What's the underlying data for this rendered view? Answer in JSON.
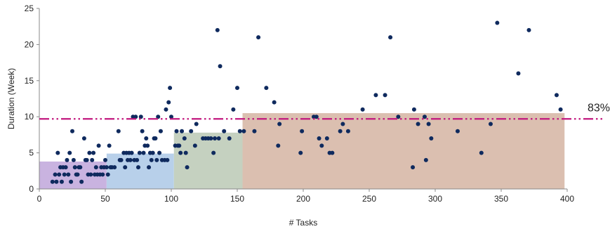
{
  "chart_data": {
    "type": "scatter",
    "title": "",
    "xlabel": "# Tasks",
    "ylabel": "Duration (Week)",
    "xlim": [
      0,
      400
    ],
    "ylim": [
      0,
      25
    ],
    "x_ticks": [
      0,
      50,
      100,
      150,
      200,
      250,
      300,
      350,
      400
    ],
    "y_ticks": [
      0,
      5,
      10,
      15,
      20,
      25
    ],
    "grid": false,
    "point_color": "#0f2a5e",
    "reference_line": {
      "y": 9.7,
      "label": "83%",
      "color": "#c2187e",
      "style": "dash-dot-dot"
    },
    "regions": [
      {
        "x0": 0,
        "x1": 51,
        "y": 3.8,
        "color": "#c9b3e0"
      },
      {
        "x0": 51,
        "x1": 102,
        "y": 4.9,
        "color": "#b8d0ea"
      },
      {
        "x0": 102,
        "x1": 154,
        "y": 7.8,
        "color": "#c5d1c0"
      },
      {
        "x0": 154,
        "x1": 398,
        "y": 10.5,
        "color": "#dbbfb0"
      }
    ],
    "points": [
      [
        10,
        1
      ],
      [
        12,
        2
      ],
      [
        13,
        1
      ],
      [
        14,
        5
      ],
      [
        15,
        2
      ],
      [
        16,
        3
      ],
      [
        17,
        1
      ],
      [
        18,
        3
      ],
      [
        19,
        2
      ],
      [
        20,
        3
      ],
      [
        21,
        4
      ],
      [
        22,
        2
      ],
      [
        23,
        5
      ],
      [
        24,
        1
      ],
      [
        25,
        8
      ],
      [
        26,
        4
      ],
      [
        27,
        3
      ],
      [
        28,
        2
      ],
      [
        29,
        2
      ],
      [
        30,
        3
      ],
      [
        31,
        3
      ],
      [
        32,
        1
      ],
      [
        34,
        7
      ],
      [
        35,
        4
      ],
      [
        36,
        4
      ],
      [
        37,
        2
      ],
      [
        38,
        5
      ],
      [
        39,
        2
      ],
      [
        40,
        4
      ],
      [
        41,
        5
      ],
      [
        42,
        2
      ],
      [
        43,
        3
      ],
      [
        44,
        2
      ],
      [
        45,
        6
      ],
      [
        46,
        2
      ],
      [
        47,
        3
      ],
      [
        48,
        2
      ],
      [
        49,
        3
      ],
      [
        50,
        4
      ],
      [
        51,
        3
      ],
      [
        52,
        2
      ],
      [
        53,
        6
      ],
      [
        54,
        3
      ],
      [
        55,
        3
      ],
      [
        57,
        3
      ],
      [
        60,
        8
      ],
      [
        61,
        4
      ],
      [
        62,
        4
      ],
      [
        64,
        5
      ],
      [
        65,
        3
      ],
      [
        66,
        5
      ],
      [
        67,
        4
      ],
      [
        68,
        5
      ],
      [
        69,
        4
      ],
      [
        70,
        5
      ],
      [
        71,
        10
      ],
      [
        72,
        4
      ],
      [
        73,
        10
      ],
      [
        74,
        4
      ],
      [
        75,
        3
      ],
      [
        76,
        5
      ],
      [
        77,
        10
      ],
      [
        78,
        8
      ],
      [
        79,
        5
      ],
      [
        80,
        6
      ],
      [
        81,
        7
      ],
      [
        82,
        6
      ],
      [
        83,
        3
      ],
      [
        84,
        5
      ],
      [
        85,
        4
      ],
      [
        86,
        5
      ],
      [
        87,
        7
      ],
      [
        88,
        7
      ],
      [
        89,
        4
      ],
      [
        90,
        10
      ],
      [
        91,
        5
      ],
      [
        92,
        8
      ],
      [
        93,
        4
      ],
      [
        95,
        4
      ],
      [
        96,
        11
      ],
      [
        97,
        4
      ],
      [
        98,
        12
      ],
      [
        99,
        14
      ],
      [
        100,
        10
      ],
      [
        103,
        6
      ],
      [
        104,
        8
      ],
      [
        105,
        6
      ],
      [
        106,
        6
      ],
      [
        107,
        5
      ],
      [
        108,
        8
      ],
      [
        110,
        7
      ],
      [
        111,
        5
      ],
      [
        112,
        3
      ],
      [
        115,
        8
      ],
      [
        118,
        6
      ],
      [
        119,
        9
      ],
      [
        124,
        7
      ],
      [
        126,
        7
      ],
      [
        128,
        7
      ],
      [
        130,
        7
      ],
      [
        132,
        5
      ],
      [
        133,
        7
      ],
      [
        135,
        22
      ],
      [
        136,
        7
      ],
      [
        137,
        17
      ],
      [
        140,
        8
      ],
      [
        144,
        7
      ],
      [
        147,
        11
      ],
      [
        150,
        14
      ],
      [
        152,
        8
      ],
      [
        155,
        8
      ],
      [
        163,
        8
      ],
      [
        166,
        21
      ],
      [
        172,
        14
      ],
      [
        178,
        12
      ],
      [
        181,
        6
      ],
      [
        182,
        9
      ],
      [
        198,
        5
      ],
      [
        199,
        8
      ],
      [
        208,
        10
      ],
      [
        210,
        10
      ],
      [
        212,
        7
      ],
      [
        214,
        6
      ],
      [
        218,
        7
      ],
      [
        220,
        5
      ],
      [
        222,
        5
      ],
      [
        228,
        8
      ],
      [
        230,
        9
      ],
      [
        234,
        8
      ],
      [
        245,
        11
      ],
      [
        255,
        13
      ],
      [
        262,
        13
      ],
      [
        266,
        21
      ],
      [
        272,
        10
      ],
      [
        283,
        3
      ],
      [
        284,
        11
      ],
      [
        287,
        9
      ],
      [
        292,
        10
      ],
      [
        293,
        4
      ],
      [
        295,
        9
      ],
      [
        297,
        7
      ],
      [
        317,
        8
      ],
      [
        335,
        5
      ],
      [
        342,
        9
      ],
      [
        347,
        23
      ],
      [
        363,
        16
      ],
      [
        371,
        22
      ],
      [
        392,
        13
      ],
      [
        395,
        11
      ]
    ]
  }
}
